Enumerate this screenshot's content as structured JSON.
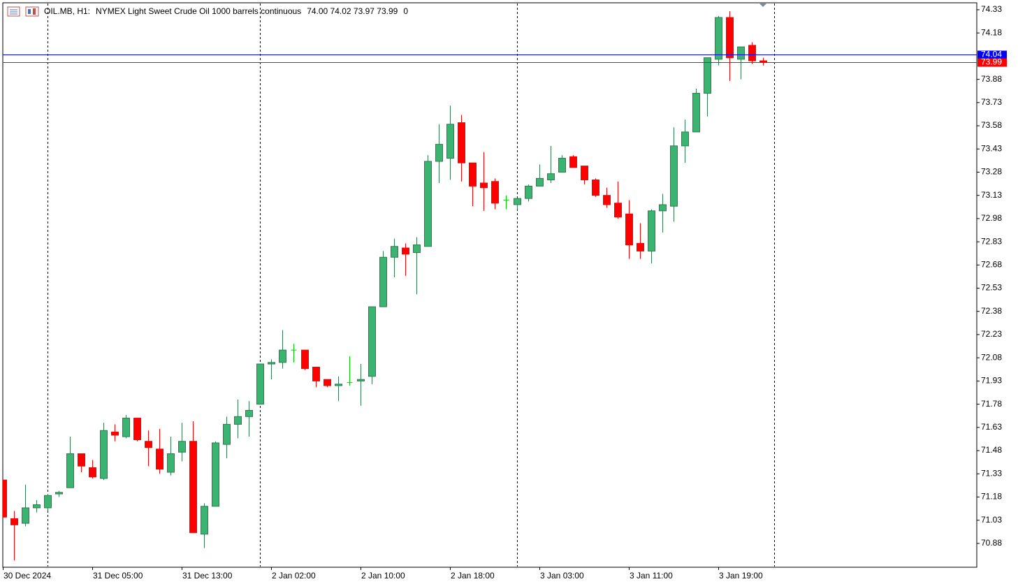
{
  "chart_data": {
    "type": "candlestick",
    "header": {
      "symbol": "OIL.MB, H1:",
      "description": "NYMEX Light Sweet Crude Oil 1000 barrels continuous",
      "ohlc": "74.00 74.02 73.97 73.99",
      "volume": "0"
    },
    "categories": [
      "30 Dec 2024",
      null,
      null,
      null,
      null,
      null,
      null,
      null,
      "31 Dec 05:00",
      null,
      null,
      null,
      null,
      null,
      null,
      null,
      "31 Dec 13:00",
      null,
      null,
      null,
      null,
      null,
      null,
      null,
      "2 Jan 02:00",
      null,
      null,
      null,
      null,
      null,
      null,
      null,
      "2 Jan 10:00",
      null,
      null,
      null,
      null,
      null,
      null,
      null,
      "2 Jan 18:00",
      null,
      null,
      null,
      null,
      null,
      null,
      null,
      "3 Jan 03:00",
      null,
      null,
      null,
      null,
      null,
      null,
      null,
      "3 Jan 11:00",
      null,
      null,
      null,
      null,
      null,
      null,
      null,
      "3 Jan 19:00",
      null,
      null,
      null,
      null
    ],
    "open": [
      71.29,
      71.04,
      71.01,
      71.11,
      71.11,
      71.2,
      71.24,
      71.46,
      71.37,
      71.3,
      71.6,
      71.57,
      71.69,
      71.54,
      71.49,
      71.34,
      71.47,
      71.54,
      70.94,
      71.12,
      71.52,
      71.65,
      71.7,
      71.78,
      72.04,
      72.05,
      72.13,
      72.13,
      72.02,
      71.94,
      71.9,
      71.92,
      71.93,
      71.96,
      72.41,
      72.73,
      72.79,
      72.76,
      72.8,
      73.35,
      73.37,
      73.6,
      73.34,
      73.21,
      73.22,
      73.1,
      73.07,
      73.11,
      73.19,
      73.23,
      73.28,
      73.38,
      73.32,
      73.23,
      73.13,
      73.08,
      73.01,
      72.82,
      72.77,
      73.03,
      73.06,
      73.45,
      73.54,
      73.79,
      74.01,
      74.28,
      74.01,
      74.1,
      74.0
    ],
    "high": [
      71.29,
      71.09,
      71.26,
      71.16,
      71.2,
      71.22,
      71.57,
      71.46,
      71.42,
      71.66,
      71.65,
      71.71,
      71.69,
      71.61,
      71.62,
      71.57,
      71.66,
      71.67,
      71.14,
      71.54,
      71.7,
      71.81,
      71.8,
      72.04,
      72.07,
      72.26,
      72.17,
      72.13,
      72.02,
      71.94,
      71.96,
      72.09,
      72.04,
      72.41,
      72.77,
      72.85,
      72.82,
      72.86,
      73.39,
      73.59,
      73.71,
      73.65,
      73.34,
      73.41,
      73.24,
      73.13,
      73.11,
      73.2,
      73.33,
      73.45,
      73.39,
      73.39,
      73.32,
      73.24,
      73.18,
      73.22,
      73.1,
      72.95,
      73.04,
      73.14,
      73.57,
      73.62,
      73.82,
      74.02,
      74.29,
      74.32,
      74.09,
      74.12,
      74.02
    ],
    "low": [
      71.05,
      70.77,
      70.99,
      71.08,
      71.09,
      71.18,
      71.24,
      71.34,
      71.3,
      71.29,
      71.54,
      71.56,
      71.54,
      71.38,
      71.33,
      71.32,
      71.41,
      70.95,
      70.85,
      71.12,
      71.43,
      71.56,
      71.57,
      71.78,
      71.94,
      72.01,
      72.05,
      72.0,
      71.89,
      71.89,
      71.8,
      71.9,
      71.77,
      71.91,
      72.41,
      72.6,
      72.61,
      72.49,
      72.8,
      73.21,
      73.23,
      73.22,
      73.06,
      73.03,
      73.04,
      73.04,
      73.04,
      73.09,
      73.19,
      73.21,
      73.28,
      73.31,
      73.2,
      73.12,
      73.05,
      72.98,
      72.72,
      72.72,
      72.69,
      72.89,
      72.96,
      73.34,
      73.54,
      73.64,
      73.97,
      73.87,
      73.88,
      73.98,
      73.97
    ],
    "close": [
      71.05,
      71.0,
      71.11,
      71.13,
      71.19,
      71.21,
      71.46,
      71.38,
      71.31,
      71.61,
      71.58,
      71.69,
      71.55,
      71.5,
      71.36,
      71.46,
      71.54,
      70.95,
      71.12,
      71.53,
      71.65,
      71.7,
      71.74,
      72.04,
      72.05,
      72.13,
      72.13,
      72.01,
      71.93,
      71.9,
      71.91,
      71.92,
      71.94,
      72.41,
      72.73,
      72.8,
      72.75,
      72.81,
      73.35,
      73.46,
      73.59,
      73.34,
      73.19,
      73.18,
      73.08,
      73.1,
      73.11,
      73.19,
      73.24,
      73.27,
      73.37,
      73.31,
      73.23,
      73.13,
      73.07,
      72.99,
      72.81,
      72.77,
      73.03,
      73.07,
      73.45,
      73.54,
      73.79,
      74.02,
      74.28,
      74.02,
      74.09,
      74.0,
      73.99
    ],
    "up_color": "#3cb371",
    "down_color": "#ff0000",
    "doji_color": "#00d000",
    "price_lines": [
      {
        "value": 74.04,
        "color": "#0000ff"
      },
      {
        "value": 73.99,
        "color": "#ff0000"
      }
    ],
    "ylim": [
      70.726,
      74.375
    ],
    "yticks": [
      74.33,
      74.18,
      73.88,
      73.73,
      73.58,
      73.43,
      73.28,
      73.13,
      72.98,
      72.83,
      72.68,
      72.53,
      72.38,
      72.23,
      72.08,
      71.93,
      71.78,
      71.63,
      71.48,
      71.33,
      71.18,
      71.03,
      70.88
    ]
  }
}
